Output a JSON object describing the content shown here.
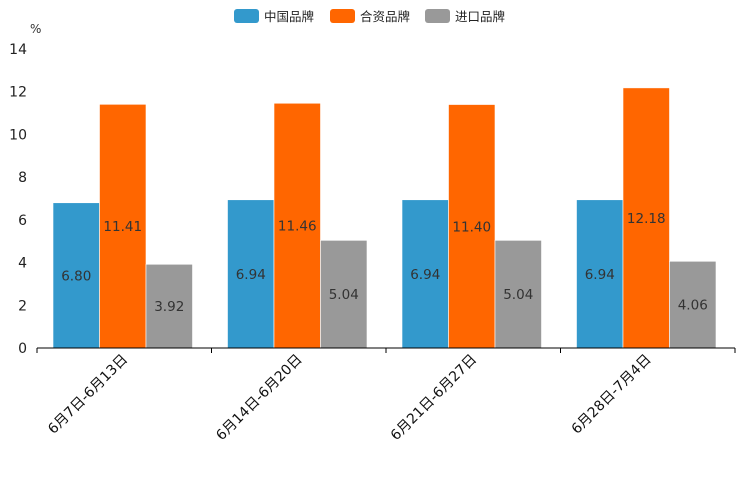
{
  "chart_data": {
    "type": "bar",
    "title": "",
    "xlabel": "",
    "ylabel": "%",
    "ylim": [
      0,
      14
    ],
    "yticks": [
      0,
      2,
      4,
      6,
      8,
      10,
      12,
      14
    ],
    "grid": false,
    "legend": "top-center",
    "categories": [
      "6月7日-6月13日",
      "6月14日-6月20日",
      "6月21日-6月27日",
      "6月28日-7月4日"
    ],
    "series": [
      {
        "name": "中国品牌",
        "color": "#3399cc",
        "values": [
          6.8,
          6.94,
          6.94,
          6.94
        ],
        "labels": [
          "6.80",
          "6.94",
          "6.94",
          "6.94"
        ]
      },
      {
        "name": "合资品牌",
        "color": "#ff6600",
        "values": [
          11.41,
          11.46,
          11.4,
          12.18
        ],
        "labels": [
          "11.41",
          "11.46",
          "11.40",
          "12.18"
        ]
      },
      {
        "name": "进口品牌",
        "color": "#999999",
        "values": [
          3.92,
          5.04,
          5.04,
          4.06
        ],
        "labels": [
          "3.92",
          "5.04",
          "5.04",
          "4.06"
        ]
      }
    ]
  }
}
